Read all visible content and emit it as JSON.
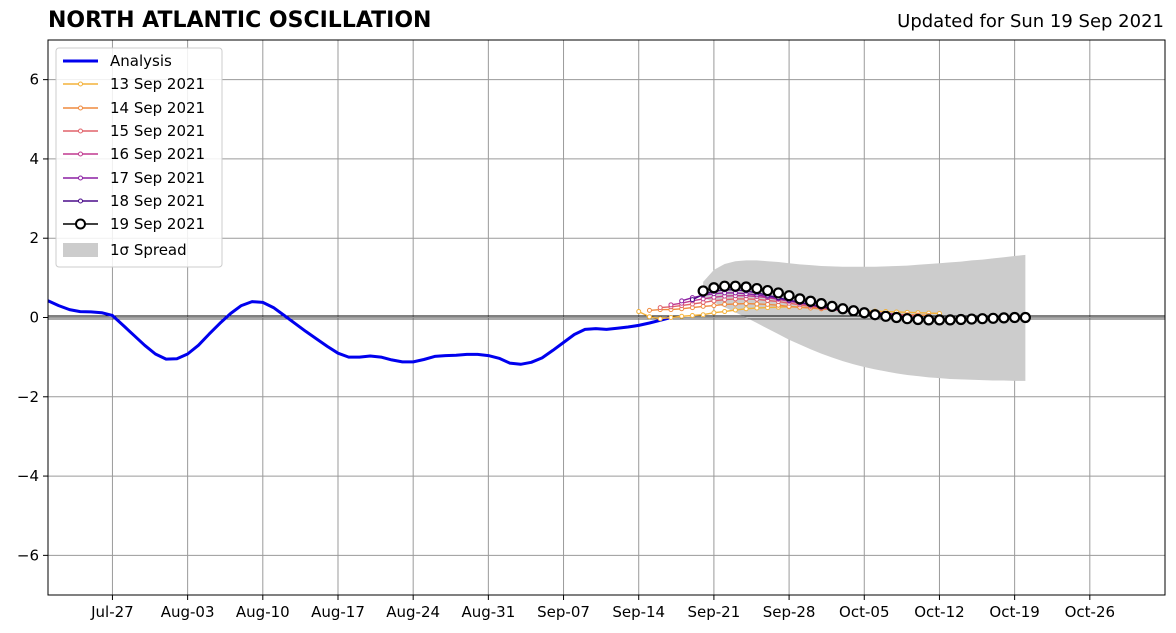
{
  "header": {
    "title": "NORTH ATLANTIC OSCILLATION",
    "updated": "Updated for Sun 19 Sep 2021"
  },
  "chart_data": {
    "type": "line",
    "title": "NORTH ATLANTIC OSCILLATION",
    "xlabel": "",
    "ylabel": "",
    "xlim": [
      -6,
      98
    ],
    "ylim": [
      -7,
      7
    ],
    "grid": true,
    "legend_position": "top-left",
    "x_ticks": [
      {
        "x": 0,
        "label": "Jul-27"
      },
      {
        "x": 7,
        "label": "Aug-03"
      },
      {
        "x": 14,
        "label": "Aug-10"
      },
      {
        "x": 21,
        "label": "Aug-17"
      },
      {
        "x": 28,
        "label": "Aug-24"
      },
      {
        "x": 35,
        "label": "Aug-31"
      },
      {
        "x": 42,
        "label": "Sep-07"
      },
      {
        "x": 49,
        "label": "Sep-14"
      },
      {
        "x": 56,
        "label": "Sep-21"
      },
      {
        "x": 63,
        "label": "Sep-28"
      },
      {
        "x": 70,
        "label": "Oct-05"
      },
      {
        "x": 77,
        "label": "Oct-12"
      },
      {
        "x": 84,
        "label": "Oct-19"
      },
      {
        "x": 91,
        "label": "Oct-26"
      }
    ],
    "y_ticks": [
      {
        "y": 6,
        "label": "6"
      },
      {
        "y": 4,
        "label": "4"
      },
      {
        "y": 2,
        "label": "2"
      },
      {
        "y": 0,
        "label": "0"
      },
      {
        "y": -2,
        "label": "−2"
      },
      {
        "y": -4,
        "label": "−4"
      },
      {
        "y": -6,
        "label": "−6"
      }
    ],
    "series": [
      {
        "name": "Analysis",
        "color": "#0000ee",
        "style": "line",
        "x": [
          -6,
          -5,
          -4,
          -3,
          -2,
          -1,
          0,
          1,
          2,
          3,
          4,
          5,
          6,
          7,
          8,
          9,
          10,
          11,
          12,
          13,
          14,
          15,
          16,
          17,
          18,
          19,
          20,
          21,
          22,
          23,
          24,
          25,
          26,
          27,
          28,
          29,
          30,
          31,
          32,
          33,
          34,
          35,
          36,
          37,
          38,
          39,
          40,
          41,
          42,
          43,
          44,
          45,
          46,
          47,
          48,
          49,
          50,
          51,
          52
        ],
        "y": [
          0.42,
          0.3,
          0.2,
          0.15,
          0.14,
          0.12,
          0.05,
          -0.2,
          -0.45,
          -0.7,
          -0.92,
          -1.05,
          -1.04,
          -0.92,
          -0.7,
          -0.42,
          -0.15,
          0.1,
          0.3,
          0.4,
          0.38,
          0.25,
          0.05,
          -0.15,
          -0.35,
          -0.54,
          -0.73,
          -0.9,
          -1.0,
          -1.0,
          -0.97,
          -1.0,
          -1.07,
          -1.12,
          -1.12,
          -1.06,
          -0.98,
          -0.96,
          -0.95,
          -0.93,
          -0.93,
          -0.96,
          -1.03,
          -1.15,
          -1.18,
          -1.13,
          -1.02,
          -0.83,
          -0.63,
          -0.43,
          -0.3,
          -0.28,
          -0.3,
          -0.27,
          -0.24,
          -0.2,
          -0.14,
          -0.07,
          0.0
        ]
      },
      {
        "name": "13 Sep 2021",
        "color": "#f4b23a",
        "style": "small-markers",
        "x": [
          49,
          50,
          51,
          52,
          53,
          54,
          55,
          56,
          57,
          58,
          59,
          60,
          61,
          62,
          63,
          64,
          65,
          66,
          67,
          68,
          69,
          70,
          71,
          72,
          73,
          74,
          75,
          76,
          77
        ],
        "y": [
          0.15,
          0.02,
          -0.03,
          0.0,
          0.03,
          0.05,
          0.07,
          0.12,
          0.15,
          0.19,
          0.22,
          0.24,
          0.25,
          0.26,
          0.27,
          0.26,
          0.24,
          0.22,
          0.2,
          0.19,
          0.18,
          0.17,
          0.16,
          0.15,
          0.14,
          0.13,
          0.12,
          0.11,
          0.1
        ]
      },
      {
        "name": "14 Sep 2021",
        "color": "#ef8a3f",
        "style": "small-markers",
        "x": [
          50,
          51,
          52,
          53,
          54,
          55,
          56,
          57,
          58,
          59,
          60,
          61,
          62,
          63,
          64,
          65,
          66,
          67,
          68,
          69,
          70,
          71,
          72,
          73,
          74,
          75,
          76
        ],
        "y": [
          0.18,
          0.2,
          0.2,
          0.22,
          0.25,
          0.28,
          0.3,
          0.33,
          0.34,
          0.35,
          0.34,
          0.33,
          0.31,
          0.28,
          0.26,
          0.24,
          0.22,
          0.2,
          0.18,
          0.16,
          0.14,
          0.12,
          0.1,
          0.08,
          0.07,
          0.06,
          0.05
        ]
      },
      {
        "name": "15 Sep 2021",
        "color": "#e0626a",
        "style": "small-markers",
        "x": [
          51,
          52,
          53,
          54,
          55,
          56,
          57,
          58,
          59,
          60,
          61,
          62,
          63,
          64,
          65,
          66,
          67,
          68,
          69,
          70,
          71,
          72,
          73,
          74,
          75
        ],
        "y": [
          0.25,
          0.27,
          0.3,
          0.34,
          0.38,
          0.42,
          0.45,
          0.47,
          0.47,
          0.46,
          0.43,
          0.4,
          0.36,
          0.32,
          0.28,
          0.24,
          0.2,
          0.17,
          0.14,
          0.12,
          0.1,
          0.08,
          0.06,
          0.05,
          0.04
        ]
      },
      {
        "name": "16 Sep 2021",
        "color": "#c0398f",
        "style": "small-markers",
        "x": [
          52,
          53,
          54,
          55,
          56,
          57,
          58,
          59,
          60,
          61,
          62,
          63,
          64,
          65,
          66,
          67,
          68,
          69,
          70,
          71,
          72,
          73,
          74
        ],
        "y": [
          0.32,
          0.36,
          0.42,
          0.47,
          0.51,
          0.54,
          0.55,
          0.55,
          0.53,
          0.5,
          0.46,
          0.41,
          0.36,
          0.31,
          0.26,
          0.22,
          0.18,
          0.15,
          0.12,
          0.1,
          0.08,
          0.06,
          0.05
        ]
      },
      {
        "name": "17 Sep 2021",
        "color": "#8b1fa3",
        "style": "small-markers",
        "x": [
          53,
          54,
          55,
          56,
          57,
          58,
          59,
          60,
          61,
          62,
          63,
          64,
          65,
          66,
          67,
          68,
          69,
          70,
          71,
          72,
          73
        ],
        "y": [
          0.42,
          0.5,
          0.56,
          0.6,
          0.62,
          0.62,
          0.6,
          0.57,
          0.53,
          0.48,
          0.43,
          0.38,
          0.33,
          0.28,
          0.24,
          0.2,
          0.17,
          0.14,
          0.12,
          0.1,
          0.08
        ]
      },
      {
        "name": "18 Sep 2021",
        "color": "#4a0b8a",
        "style": "small-markers",
        "x": [
          54,
          55,
          56,
          57,
          58,
          59,
          60,
          61,
          62,
          63,
          64,
          65,
          66,
          67,
          68,
          69,
          70,
          71,
          72
        ],
        "y": [
          0.45,
          0.58,
          0.66,
          0.7,
          0.7,
          0.67,
          0.62,
          0.56,
          0.5,
          0.44,
          0.38,
          0.32,
          0.27,
          0.22,
          0.18,
          0.15,
          0.12,
          0.1,
          0.08
        ]
      },
      {
        "name": "19 Sep 2021",
        "color": "#000000",
        "style": "big-markers",
        "x": [
          55,
          56,
          57,
          58,
          59,
          60,
          61,
          62,
          63,
          64,
          65,
          66,
          67,
          68,
          69,
          70,
          71,
          72,
          73,
          74,
          75,
          76,
          77,
          78,
          79,
          80,
          81,
          82,
          83,
          84,
          85
        ],
        "y": [
          0.67,
          0.75,
          0.79,
          0.79,
          0.77,
          0.73,
          0.68,
          0.62,
          0.55,
          0.47,
          0.41,
          0.35,
          0.28,
          0.22,
          0.17,
          0.12,
          0.07,
          0.03,
          0.0,
          -0.03,
          -0.05,
          -0.06,
          -0.06,
          -0.06,
          -0.05,
          -0.04,
          -0.03,
          -0.02,
          -0.01,
          0.0,
          0.0
        ]
      }
    ],
    "spread": {
      "name": "1σ Spread",
      "color": "#cccccc",
      "x": [
        55,
        56,
        57,
        58,
        59,
        60,
        61,
        62,
        63,
        64,
        65,
        66,
        67,
        68,
        69,
        70,
        71,
        72,
        73,
        74,
        75,
        76,
        77,
        78,
        79,
        80,
        81,
        82,
        83,
        84,
        85
      ],
      "upper": [
        0.9,
        1.2,
        1.35,
        1.42,
        1.44,
        1.44,
        1.42,
        1.4,
        1.37,
        1.34,
        1.32,
        1.3,
        1.29,
        1.28,
        1.28,
        1.28,
        1.28,
        1.29,
        1.3,
        1.31,
        1.33,
        1.35,
        1.37,
        1.39,
        1.41,
        1.44,
        1.46,
        1.49,
        1.52,
        1.55,
        1.58
      ],
      "lower": [
        0.5,
        0.38,
        0.26,
        0.13,
        0.0,
        -0.14,
        -0.28,
        -0.42,
        -0.56,
        -0.68,
        -0.8,
        -0.91,
        -1.01,
        -1.1,
        -1.18,
        -1.25,
        -1.31,
        -1.36,
        -1.41,
        -1.45,
        -1.48,
        -1.51,
        -1.53,
        -1.55,
        -1.56,
        -1.57,
        -1.58,
        -1.59,
        -1.59,
        -1.6,
        -1.6
      ]
    }
  }
}
